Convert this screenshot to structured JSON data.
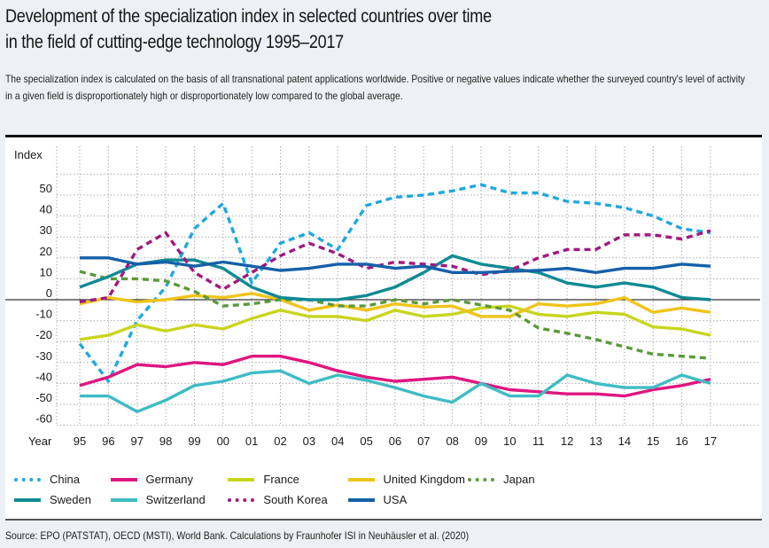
{
  "header": {
    "title_line1": "Development of the specialization index in selected countries over time",
    "title_line2": "in the field of cutting-edge technology 1995–2017",
    "description": "The specialization index is calculated on the basis of all transnational patent applications worldwide. Positive or negative values indicate whether the surveyed country's level of activity in a given field is disproportionately high or disproportionately low compared to the global average."
  },
  "source": "Source: EPO (PATSTAT), OECD (MSTI), World Bank. Calculations by Fraunhofer ISI in Neuhäusler et al. (2020)",
  "chart_data": {
    "type": "line",
    "title": "Development of the specialization index in selected countries over time in the field of cutting-edge technology 1995–2017",
    "xlabel": "Year",
    "ylabel": "Index",
    "x": [
      "95",
      "96",
      "97",
      "98",
      "99",
      "00",
      "01",
      "02",
      "03",
      "04",
      "05",
      "06",
      "07",
      "08",
      "09",
      "10",
      "11",
      "12",
      "13",
      "14",
      "15",
      "16",
      "17"
    ],
    "ylim": [
      -60,
      60
    ],
    "yticks": [
      50,
      40,
      30,
      20,
      10,
      0,
      -10,
      -20,
      -30,
      -40,
      -50,
      -60
    ],
    "grid": true,
    "legend_position": "bottom",
    "series": [
      {
        "name": "China",
        "color": "#1fa8e0",
        "style": "dashed",
        "values": [
          -21,
          -39,
          -10,
          6,
          34,
          46,
          8,
          27,
          32,
          24,
          45,
          49,
          50,
          52,
          55,
          51,
          51,
          47,
          46,
          44,
          40,
          34,
          32
        ]
      },
      {
        "name": "Germany",
        "color": "#e0157f",
        "style": "solid",
        "values": [
          -41,
          -37,
          -31,
          -32,
          -30,
          -31,
          -27,
          -27,
          -30,
          -34,
          -37,
          -39,
          -38,
          -37,
          -40,
          -43,
          -44,
          -45,
          -45,
          -46,
          -43,
          -41,
          -38
        ]
      },
      {
        "name": "France",
        "color": "#c8d51e",
        "style": "solid",
        "values": [
          -19,
          -17,
          -12,
          -15,
          -12,
          -14,
          -9,
          -5,
          -8,
          -8,
          -10,
          -5,
          -8,
          -7,
          -4,
          -3,
          -7,
          -8,
          -6,
          -7,
          -13,
          -14,
          -17
        ]
      },
      {
        "name": "United Kingdom",
        "color": "#f0c419",
        "style": "solid",
        "values": [
          -2,
          1,
          -1,
          0,
          2,
          1,
          3,
          0,
          -5,
          -2.5,
          -5,
          -2,
          -3.5,
          -3,
          -8,
          -8,
          -2,
          -3,
          -2,
          1,
          -6,
          -4,
          -6
        ]
      },
      {
        "name": "Japan",
        "color": "#5a9a3a",
        "style": "dashed",
        "values": [
          13.5,
          10,
          10,
          9,
          4,
          -3,
          -2,
          0,
          0,
          -3,
          -3,
          0,
          -2,
          0,
          -2.5,
          -5,
          -13.5,
          -16,
          -19,
          -22.5,
          -26,
          -27,
          -28
        ]
      },
      {
        "name": "Sweden",
        "color": "#0f8a94",
        "style": "solid",
        "values": [
          6,
          11,
          17,
          19,
          19,
          15,
          6,
          1,
          0,
          0,
          2,
          6,
          13,
          21,
          17,
          15,
          13,
          8,
          6,
          8,
          6,
          1,
          0
        ]
      },
      {
        "name": "Switzerland",
        "color": "#3fbcc4",
        "style": "solid",
        "values": [
          -46,
          -46,
          -53.5,
          -48,
          -41,
          -39,
          -35,
          -34,
          -40,
          -36,
          -38.5,
          -42,
          -46,
          -49,
          -40,
          -46,
          -46,
          -36,
          -40,
          -42,
          -42,
          -36,
          -40
        ]
      },
      {
        "name": "South Korea",
        "color": "#a0197f",
        "style": "dashed",
        "values": [
          -1,
          1,
          24,
          32,
          13,
          5,
          13,
          21,
          27,
          22,
          15,
          18,
          17,
          16,
          12,
          14,
          20,
          24,
          24,
          31,
          31,
          29,
          33
        ]
      },
      {
        "name": "USA",
        "color": "#1560a8",
        "style": "solid",
        "values": [
          20,
          20,
          17,
          18,
          16,
          18,
          16,
          14,
          15,
          17,
          17,
          15,
          16,
          13,
          13,
          13.5,
          14,
          15,
          13,
          15,
          15,
          17,
          16
        ]
      }
    ]
  }
}
